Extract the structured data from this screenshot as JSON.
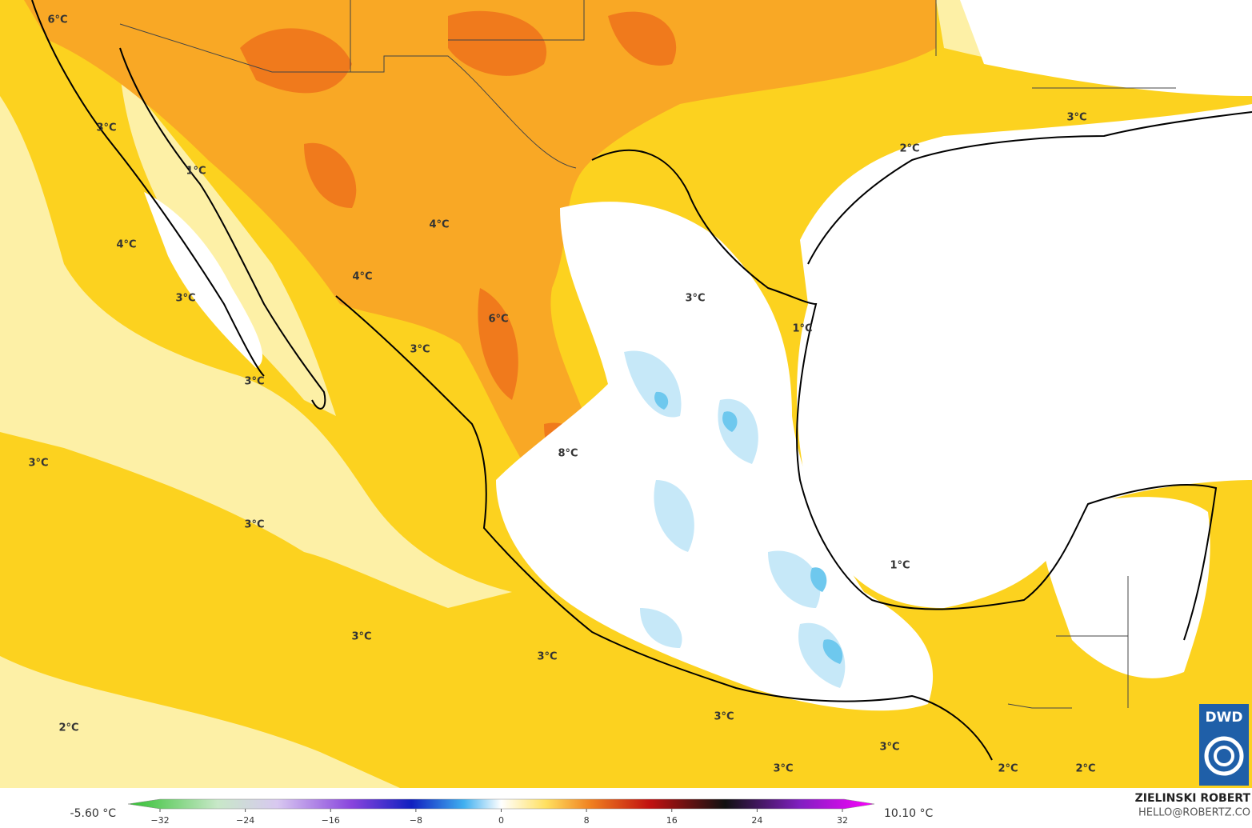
{
  "map": {
    "contour_labels": [
      "6°C",
      "3°C",
      "1°C",
      "4°C",
      "3°C",
      "4°C",
      "4°C",
      "3°C",
      "3°C",
      "6°C",
      "3°C",
      "1°C",
      "2°C",
      "3°C",
      "3°C",
      "3°C",
      "8°C",
      "3°C",
      "3°C",
      "1°C",
      "2°C",
      "3°C",
      "3°C",
      "3°C",
      "2°C",
      "2°C"
    ],
    "colorbar": {
      "range": [
        -35,
        35
      ],
      "ticks": [
        {
          "value": -32,
          "label": "−32"
        },
        {
          "value": -24,
          "label": "−24"
        },
        {
          "value": -16,
          "label": "−16"
        },
        {
          "value": -8,
          "label": "−8"
        },
        0,
        8,
        16,
        24,
        32
      ],
      "min_label": "-5.60 °C",
      "max_label": "10.10 °C"
    },
    "credit": {
      "name": "ZIELINSKI ROBERT",
      "contact": "HELLO@ROBERTZ.CO"
    },
    "logo": "DWD"
  }
}
